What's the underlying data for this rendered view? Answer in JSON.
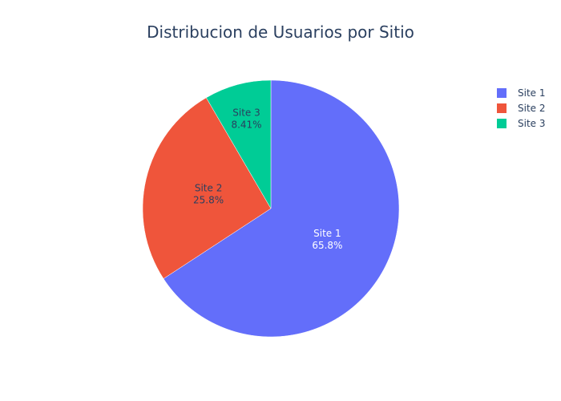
{
  "chart_data": {
    "type": "pie",
    "title": "Distribucion de Usuarios por Sitio",
    "categories": [
      "Site 1",
      "Site 2",
      "Site 3"
    ],
    "values": [
      65.8,
      25.8,
      8.41
    ],
    "value_labels": [
      "65.8%",
      "25.8%",
      "8.41%"
    ],
    "colors": [
      "#636efa",
      "#ef553b",
      "#00cc96"
    ],
    "label_colors": [
      "#ffffff",
      "#2a3f5f",
      "#2a3f5f"
    ],
    "direction": "clockwise",
    "start_angle_deg": 90,
    "legend_position": "top-right"
  },
  "legend": {
    "items": [
      {
        "label": "Site 1",
        "color": "#636efa"
      },
      {
        "label": "Site 2",
        "color": "#ef553b"
      },
      {
        "label": "Site 3",
        "color": "#00cc96"
      }
    ]
  }
}
